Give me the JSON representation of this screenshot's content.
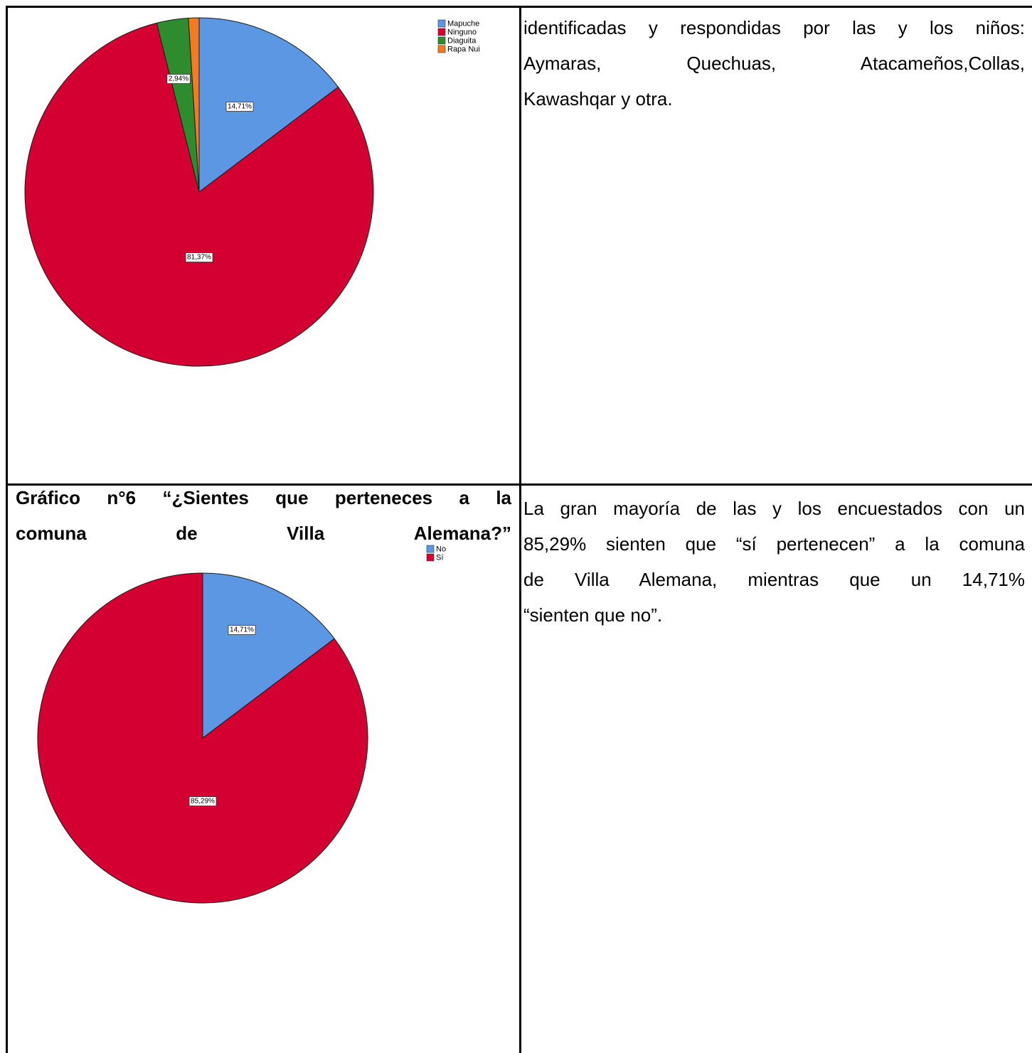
{
  "colors": {
    "blue": "#5B97E2",
    "red": "#D50032",
    "green": "#2E8B2E",
    "orange": "#F47A20",
    "border": "#000000"
  },
  "chart_data": [
    {
      "type": "pie",
      "title": "",
      "legend": {
        "placement": "top-right",
        "entries": [
          "Mapuche",
          "Ninguno",
          "Diaguita",
          "Rapa Nui"
        ]
      },
      "slices": [
        {
          "name": "Mapuche",
          "value": 14.71,
          "label": "14,71%",
          "color": "#5B97E2"
        },
        {
          "name": "Ninguno",
          "value": 81.37,
          "label": "81,37%",
          "color": "#D50032"
        },
        {
          "name": "Diaguita",
          "value": 2.94,
          "label": "2,94%",
          "color": "#2E8B2E"
        },
        {
          "name": "Rapa Nui",
          "value": 0.98,
          "label": "",
          "color": "#F47A20"
        }
      ]
    },
    {
      "type": "pie",
      "title": "Gráfico n°6 “¿Sientes que perteneces a la comuna de Villa Alemana?”",
      "legend": {
        "placement": "top-right",
        "entries": [
          "No",
          "Sí"
        ]
      },
      "slices": [
        {
          "name": "No",
          "value": 14.71,
          "label": "14,71%",
          "color": "#5B97E2"
        },
        {
          "name": "Sí",
          "value": 85.29,
          "label": "85,29%",
          "color": "#D50032"
        }
      ]
    }
  ],
  "cell_top_right": {
    "line1": "identificadas y respondidas por las y los niños:",
    "line2": "Aymaras, Quechuas, Atacameños,Collas,",
    "line3": "Kawashqar y otra."
  },
  "chart2_heading": {
    "line1": "Gráfico n°6 “¿Sientes que perteneces a la",
    "w1": "comuna",
    "w2": "de",
    "w3": "Villa",
    "w4": "Alemana?”"
  },
  "cell_bottom_right": {
    "line1": "La gran mayoría de las y los encuestados con un",
    "line2": "85,29% sienten que “sí pertenecen” a la comuna",
    "line3": "de Villa Alemana, mientras que un 14,71%",
    "line4": "“sienten que no”."
  }
}
